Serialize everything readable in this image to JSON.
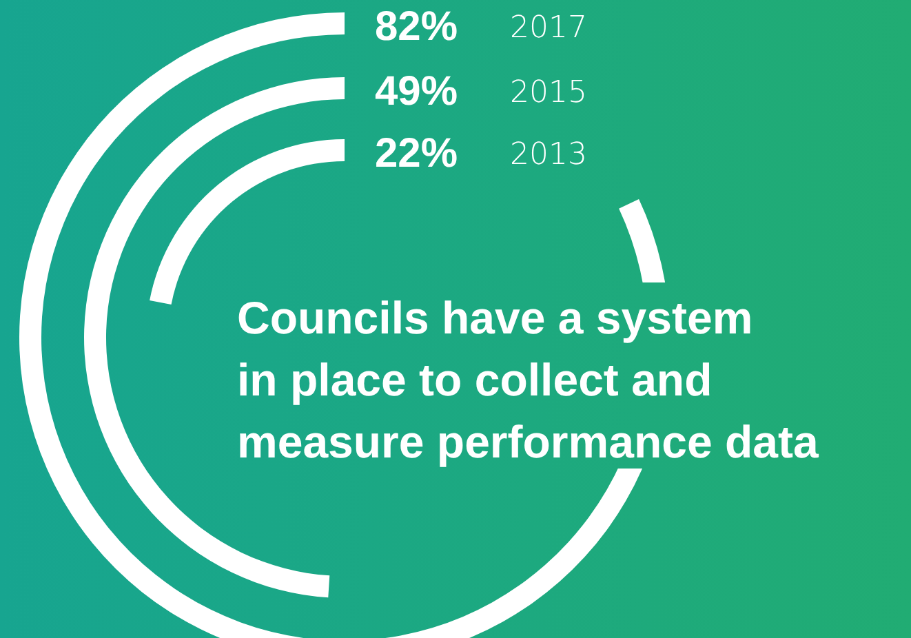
{
  "chart_data": {
    "type": "other",
    "title": "Councils have a system\nin place to collect and\nmeasure performance data",
    "categories": [
      "2017",
      "2015",
      "2013"
    ],
    "values": [
      82,
      49,
      22
    ],
    "value_labels": [
      "82%",
      "49%",
      "22%"
    ],
    "color": "#ffffff"
  }
}
